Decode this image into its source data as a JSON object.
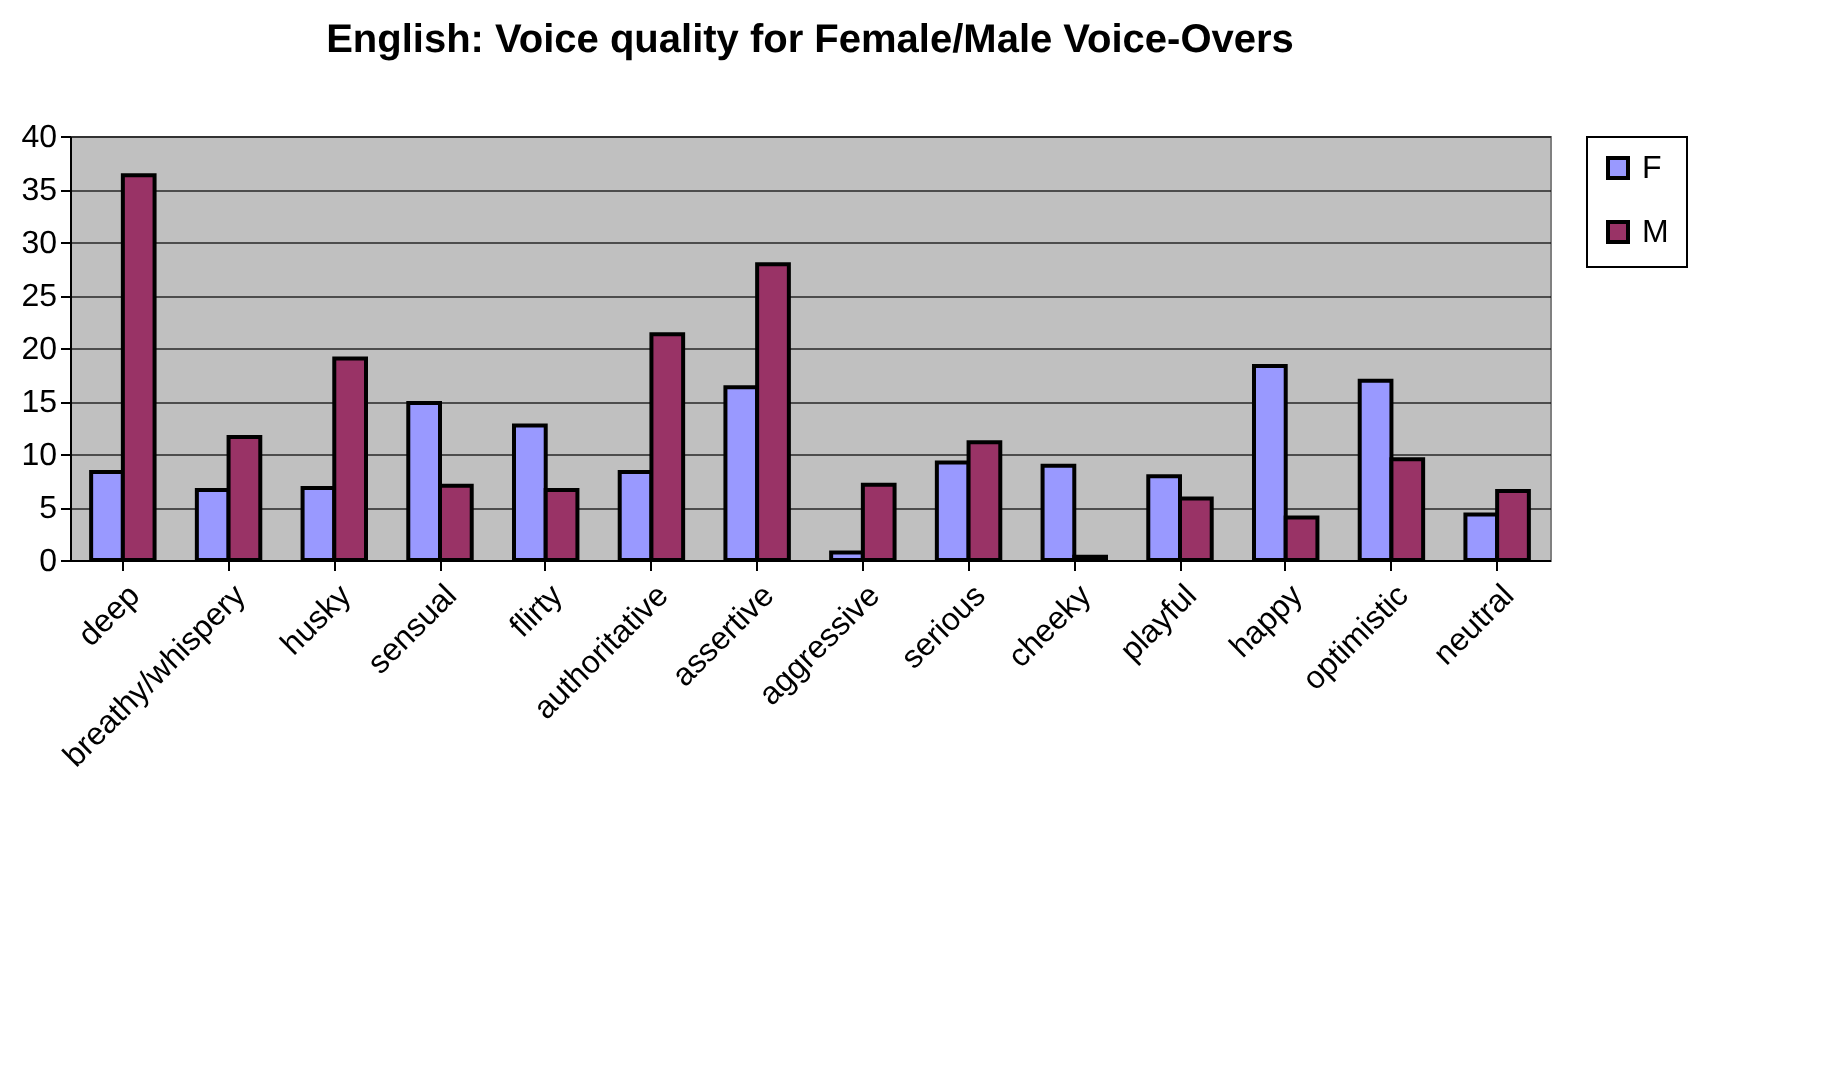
{
  "chart_data": {
    "type": "bar",
    "title": "English: Voice quality for Female/Male Voice-Overs",
    "categories": [
      "deep",
      "breathy/whispery",
      "husky",
      "sensual",
      "flirty",
      "authoritative",
      "assertive",
      "aggressive",
      "serious",
      "cheeky",
      "playful",
      "happy",
      "optimistic",
      "neutral"
    ],
    "series": [
      {
        "name": "F",
        "color": "#9999ff",
        "values": [
          8.3,
          6.6,
          6.8,
          14.8,
          12.7,
          8.3,
          16.3,
          0.7,
          9.2,
          8.9,
          7.9,
          18.3,
          16.9,
          4.3
        ]
      },
      {
        "name": "M",
        "color": "#993366",
        "values": [
          36.3,
          11.6,
          19,
          7,
          6.6,
          21.3,
          27.9,
          7.1,
          11.1,
          0.3,
          5.8,
          4,
          9.5,
          6.5
        ]
      }
    ],
    "ylim": [
      0,
      40
    ],
    "yticks": [
      0,
      5,
      10,
      15,
      20,
      25,
      30,
      35,
      40
    ],
    "grid": "y",
    "legend": "right"
  }
}
